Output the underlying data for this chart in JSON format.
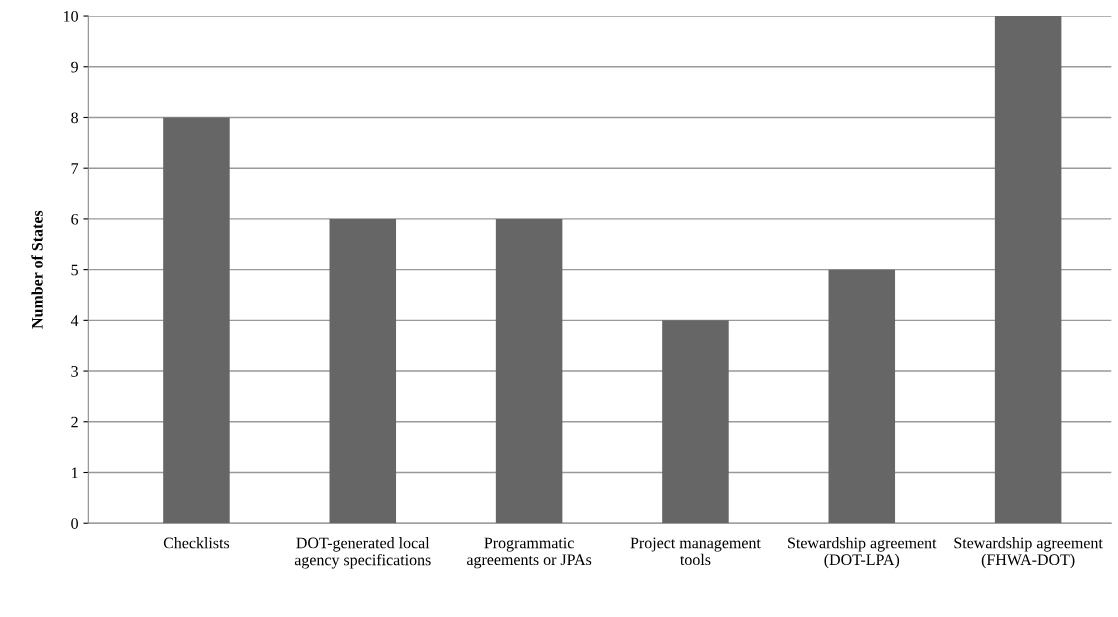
{
  "chart_data": {
    "type": "bar",
    "categories": [
      "Checklists",
      "DOT-generated local agency specifications",
      "Programmatic agreements or JPAs",
      "Project management tools",
      "Stewardship agreement (DOT-LPA)",
      "Stewardship agreement (FHWA-DOT)"
    ],
    "values": [
      8,
      6,
      6,
      4,
      5,
      10
    ],
    "color": "#666666",
    "ylabel": "Number of States",
    "ylim": [
      0,
      10
    ],
    "yticks": [
      0,
      1,
      2,
      3,
      4,
      5,
      6,
      7,
      8,
      9,
      10
    ],
    "grid": "y"
  }
}
